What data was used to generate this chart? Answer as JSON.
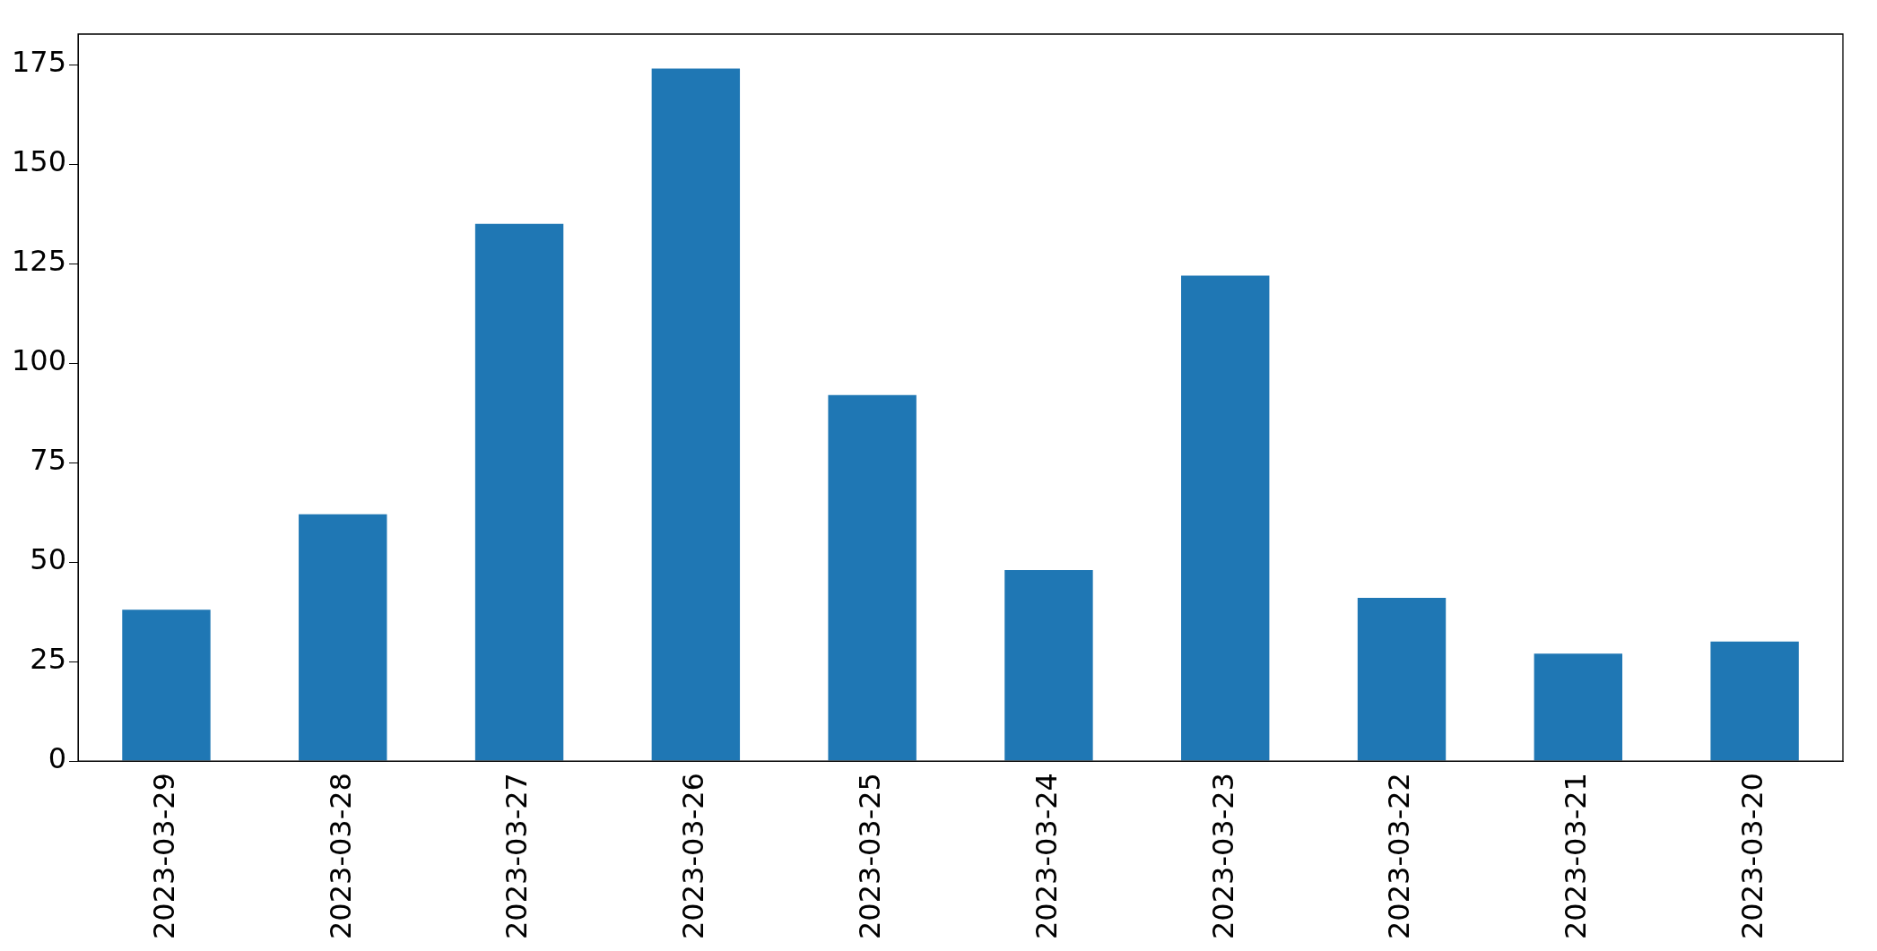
{
  "chart_data": {
    "type": "bar",
    "categories": [
      "2023-03-29",
      "2023-03-28",
      "2023-03-27",
      "2023-03-26",
      "2023-03-25",
      "2023-03-24",
      "2023-03-23",
      "2023-03-22",
      "2023-03-21",
      "2023-03-20"
    ],
    "values": [
      38,
      62,
      135,
      174,
      92,
      48,
      122,
      41,
      27,
      30
    ],
    "color": "#1f77b4",
    "ylim": [
      0,
      182.7
    ],
    "yticks": [
      0,
      25,
      50,
      75,
      100,
      125,
      150,
      175
    ],
    "grid": false,
    "legend": false
  }
}
